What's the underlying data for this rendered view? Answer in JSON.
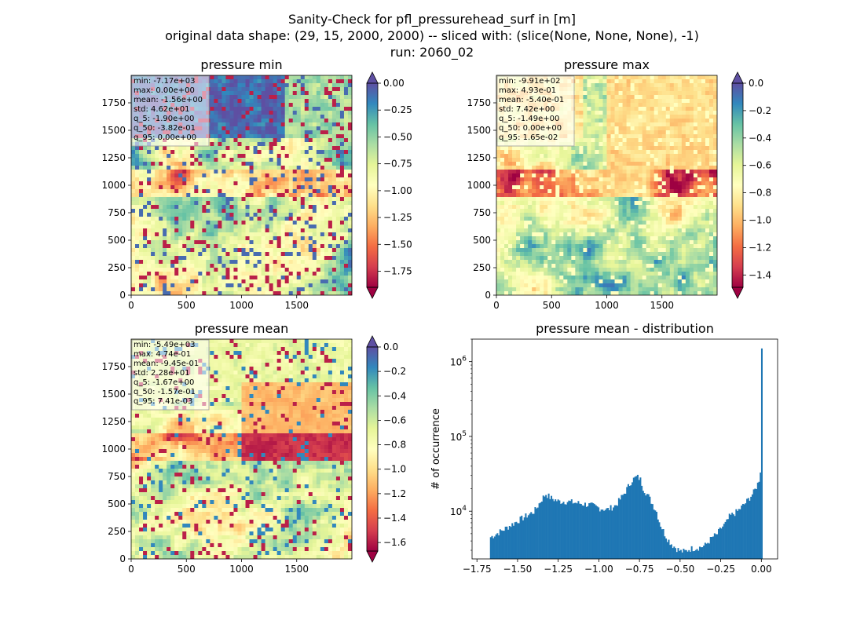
{
  "figure": {
    "title_lines": [
      "Sanity-Check for pfl_pressurehead_surf in [m]",
      "original data shape: (29, 15, 2000, 2000) -- sliced with: (slice(None, None, None), -1)",
      "run: 2060_02"
    ]
  },
  "colormap": {
    "name": "Spectral",
    "stops": [
      "#9e0142",
      "#d53e4f",
      "#f46d43",
      "#fdae61",
      "#fee08b",
      "#ffffbf",
      "#e6f598",
      "#abdda4",
      "#66c2a5",
      "#3288bd",
      "#5e4fa2"
    ]
  },
  "chart_data": [
    {
      "type": "heatmap",
      "title": "pressure min",
      "xlabel": "",
      "ylabel": "",
      "x_ticks": [
        "0",
        "500",
        "1000",
        "1500"
      ],
      "y_ticks": [
        "0",
        "250",
        "500",
        "750",
        "1000",
        "1250",
        "1500",
        "1750"
      ],
      "xlim": [
        0,
        2000
      ],
      "ylim": [
        0,
        2000
      ],
      "colorbar": {
        "range": [
          -1.9,
          0.0
        ],
        "ticks": [
          0.0,
          -0.25,
          -0.5,
          -0.75,
          -1.0,
          -1.25,
          -1.5,
          -1.75
        ],
        "tick_labels": [
          "0.00",
          "−0.25",
          "−0.50",
          "−0.75",
          "−1.00",
          "−1.25",
          "−1.50",
          "−1.75"
        ],
        "extend": "both"
      },
      "stats": [
        "min: -7.17e+03",
        "max: 0.00e+00",
        "mean: -1.56e+00",
        "std: 4.62e+01",
        "q_5: -1.90e+00",
        "q_50: -3.82e-01",
        "q_95: 0.00e+00"
      ]
    },
    {
      "type": "heatmap",
      "title": "pressure max",
      "xlabel": "",
      "ylabel": "",
      "x_ticks": [
        "0",
        "500",
        "1000",
        "1500"
      ],
      "y_ticks": [
        "0",
        "250",
        "500",
        "750",
        "1000",
        "1250",
        "1500",
        "1750"
      ],
      "xlim": [
        0,
        2000
      ],
      "ylim": [
        0,
        2000
      ],
      "colorbar": {
        "range": [
          -1.49,
          0.0
        ],
        "ticks": [
          0.0,
          -0.2,
          -0.4,
          -0.6,
          -0.8,
          -1.0,
          -1.2,
          -1.4
        ],
        "tick_labels": [
          "0.0",
          "−0.2",
          "−0.4",
          "−0.6",
          "−0.8",
          "−1.0",
          "−1.2",
          "−1.4"
        ],
        "extend": "both"
      },
      "stats": [
        "min: -9.91e+02",
        "max: 4.93e-01",
        "mean: -5.40e-01",
        "std: 7.42e+00",
        "q_5: -1.49e+00",
        "q_50: 0.00e+00",
        "q_95: 1.65e-02"
      ]
    },
    {
      "type": "heatmap",
      "title": "pressure mean",
      "xlabel": "",
      "ylabel": "",
      "x_ticks": [
        "0",
        "500",
        "1000",
        "1500"
      ],
      "y_ticks": [
        "0",
        "250",
        "500",
        "750",
        "1000",
        "1250",
        "1500",
        "1750"
      ],
      "xlim": [
        0,
        2000
      ],
      "ylim": [
        0,
        2000
      ],
      "colorbar": {
        "range": [
          -1.67,
          0.0
        ],
        "ticks": [
          0.0,
          -0.2,
          -0.4,
          -0.6,
          -0.8,
          -1.0,
          -1.2,
          -1.4,
          -1.6
        ],
        "tick_labels": [
          "0.0",
          "−0.2",
          "−0.4",
          "−0.6",
          "−0.8",
          "−1.0",
          "−1.2",
          "−1.4",
          "−1.6"
        ],
        "extend": "both"
      },
      "stats": [
        "min: -5.49e+03",
        "max: 4.74e-01",
        "mean: -9.45e-01",
        "std: 2.28e+01",
        "q_5: -1.67e+00",
        "q_50: -1.57e-01",
        "q_95: 7.41e-03"
      ]
    },
    {
      "type": "bar",
      "title": "pressure mean - distribution",
      "xlabel": "",
      "ylabel": "# of occurrence",
      "y_scale": "log",
      "xlim": [
        -1.78,
        0.1
      ],
      "ylim": [
        2300,
        2000000
      ],
      "x_ticks": [
        -1.75,
        -1.5,
        -1.25,
        -1.0,
        -0.75,
        -0.5,
        -0.25,
        0.0
      ],
      "x_tick_labels": [
        "−1.75",
        "−1.50",
        "−1.25",
        "−1.00",
        "−0.75",
        "−0.50",
        "−0.25",
        "0.00"
      ],
      "y_ticks": [
        10000,
        100000,
        1000000
      ],
      "y_tick_labels": [
        "10^4",
        "10^5",
        "10^6"
      ],
      "bar_color": "#1f77b4",
      "bin_width": 0.0083,
      "x": [
        -1.67,
        -1.6,
        -1.5,
        -1.4,
        -1.35,
        -1.33,
        -1.3,
        -1.25,
        -1.2,
        -1.15,
        -1.1,
        -1.05,
        -1.0,
        -0.95,
        -0.9,
        -0.85,
        -0.8,
        -0.77,
        -0.75,
        -0.73,
        -0.7,
        -0.67,
        -0.65,
        -0.63,
        -0.6,
        -0.58,
        -0.55,
        -0.52,
        -0.5,
        -0.47,
        -0.45,
        -0.42,
        -0.38,
        -0.35,
        -0.3,
        -0.28,
        -0.25,
        -0.22,
        -0.2,
        -0.15,
        -0.1,
        -0.05,
        -0.02,
        -0.01,
        -0.005,
        0.0
      ],
      "counts": [
        4500,
        5500,
        7500,
        10000,
        15000,
        17000,
        15000,
        13500,
        13500,
        13000,
        12500,
        12000,
        11000,
        10500,
        12000,
        17000,
        26000,
        29000,
        27000,
        20000,
        16000,
        12000,
        10000,
        7000,
        5000,
        4200,
        3500,
        3100,
        2900,
        2900,
        3100,
        3200,
        3300,
        3500,
        4600,
        4800,
        6000,
        7000,
        8500,
        10000,
        13000,
        18000,
        25000,
        35000,
        50000,
        1500000
      ]
    }
  ]
}
